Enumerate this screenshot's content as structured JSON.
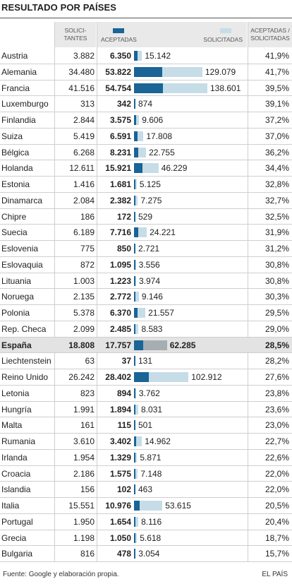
{
  "title": "RESULTADO POR PAÍSES",
  "headers": {
    "solicitantes": [
      "SOLICI-",
      "TANTES"
    ],
    "aceptadas": "ACEPTADAS",
    "solicitadas": "SOLICITADAS",
    "ratio": [
      "ACEPTADAS /",
      "SOLICITADAS"
    ]
  },
  "colors": {
    "aceptadas": "#1a6496",
    "solicitadas": "#c6dde8",
    "highlight_bar": "#a6aeb3",
    "highlight_row": "#e3e3e3"
  },
  "footer": {
    "source": "Fuente: Google y elaboración propia.",
    "logo": "EL PAÍS"
  },
  "chart_data": {
    "type": "bar",
    "categories": [
      "Austria",
      "Alemania",
      "Francia",
      "Luxemburgo",
      "Finlandia",
      "Suiza",
      "Bélgica",
      "Holanda",
      "Estonia",
      "Dinamarca",
      "Chipre",
      "Suecia",
      "Eslovenia",
      "Eslovaquia",
      "Lituania",
      "Noruega",
      "Polonia",
      "Rep. Checa",
      "España",
      "Liechtenstein",
      "Reino Unido",
      "Letonia",
      "Hungría",
      "Malta",
      "Rumania",
      "Irlanda",
      "Croacia",
      "Islandia",
      "Italia",
      "Portugal",
      "Grecia",
      "Bulgaria"
    ],
    "highlight": "España",
    "solicitantes": [
      "3.882",
      "34.480",
      "41.516",
      "313",
      "2.844",
      "5.419",
      "6.268",
      "12.611",
      "1.416",
      "2.084",
      "186",
      "6.189",
      "775",
      "872",
      "1.003",
      "2.135",
      "5.378",
      "2.099",
      "18.808",
      "63",
      "26.242",
      "823",
      "1.991",
      "161",
      "3.610",
      "1.954",
      "2.186",
      "156",
      "15.551",
      "1.950",
      "1.198",
      "816"
    ],
    "aceptadas_label": [
      "6.350",
      "53.822",
      "54.754",
      "342",
      "3.575",
      "6.591",
      "8.231",
      "15.921",
      "1.681",
      "2.382",
      "172",
      "7.716",
      "850",
      "1.095",
      "1.223",
      "2.772",
      "6.370",
      "2.485",
      "17.757",
      "37",
      "28.402",
      "894",
      "1.894",
      "115",
      "3.402",
      "1.329",
      "1.575",
      "102",
      "10.976",
      "1.654",
      "1.050",
      "478"
    ],
    "solicitadas_label": [
      "15.142",
      "129.079",
      "138.601",
      "874",
      "9.606",
      "17.808",
      "22.755",
      "46.229",
      "5.125",
      "7.275",
      "529",
      "24.221",
      "2.721",
      "3.556",
      "3.974",
      "9.146",
      "21.557",
      "8.583",
      "62.285",
      "131",
      "102.912",
      "3.762",
      "8.031",
      "501",
      "14.962",
      "5.871",
      "7.148",
      "463",
      "53.615",
      "8.116",
      "5.618",
      "3.054"
    ],
    "ratio": [
      "41,9%",
      "41,7%",
      "39,5%",
      "39,1%",
      "37,2%",
      "37,0%",
      "36,2%",
      "34,4%",
      "32,8%",
      "32,7%",
      "32,5%",
      "31,9%",
      "31,2%",
      "30,8%",
      "30,8%",
      "30,3%",
      "29,5%",
      "29,0%",
      "28,5%",
      "28,2%",
      "27,6%",
      "23,8%",
      "23,6%",
      "23,0%",
      "22,7%",
      "22,6%",
      "22,0%",
      "22,0%",
      "20,5%",
      "20,4%",
      "18,7%",
      "15,7%"
    ],
    "series": [
      {
        "name": "ACEPTADAS",
        "values": [
          6350,
          53822,
          54754,
          342,
          3575,
          6591,
          8231,
          15921,
          1681,
          2382,
          172,
          7716,
          850,
          1095,
          1223,
          2772,
          6370,
          2485,
          17757,
          37,
          28402,
          894,
          1894,
          115,
          3402,
          1329,
          1575,
          102,
          10976,
          1654,
          1050,
          478
        ]
      },
      {
        "name": "SOLICITADAS",
        "values": [
          15142,
          129079,
          138601,
          874,
          9606,
          17808,
          22755,
          46229,
          5125,
          7275,
          529,
          24221,
          2721,
          3556,
          3974,
          9146,
          21557,
          8583,
          62285,
          131,
          102912,
          3762,
          8031,
          501,
          14962,
          5871,
          7148,
          463,
          53615,
          8116,
          5618,
          3054
        ]
      }
    ],
    "xlim": [
      0,
      138601
    ]
  }
}
